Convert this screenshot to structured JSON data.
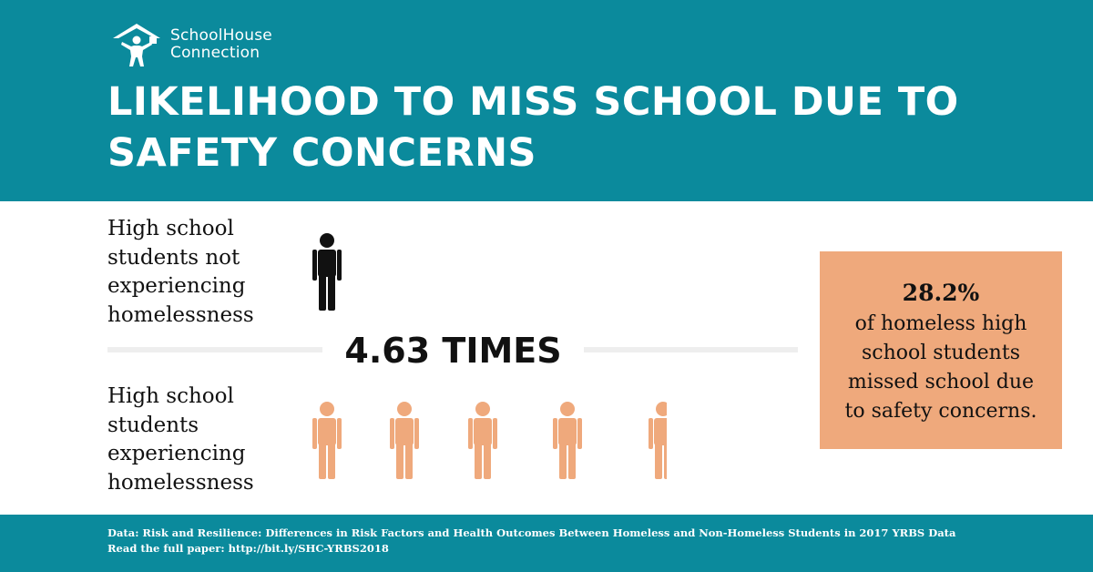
{
  "brand": {
    "line1": "SchoolHouse",
    "line2": "Connection"
  },
  "title": "LIKELIHOOD TO MISS SCHOOL DUE TO SAFETY CONCERNS",
  "comparison": {
    "top_label_lines": [
      "High school",
      "students not",
      "experiencing",
      "homelessness"
    ],
    "bottom_label_lines": [
      "High school",
      "students",
      "experiencing",
      "homelessness"
    ],
    "multiplier_text": "4.63 TIMES",
    "multiplier_value": 4.63,
    "top_icon_count": 1,
    "bottom_icon_count": 4.63
  },
  "stat": {
    "value": "28.2%",
    "lines": [
      "of homeless high",
      "school students",
      "missed school due",
      "to safety concerns."
    ]
  },
  "footer": {
    "source": "Data: Risk and Resilience: Differences in Risk Factors and Health Outcomes Between Homeless and Non-Homeless Students in 2017 YRBS Data",
    "link": "Read the full paper: http://bit.ly/SHC-YRBS2018"
  },
  "colors": {
    "teal": "#0b8a9c",
    "orange": "#efa97c",
    "person_orange": "#efa97c",
    "person_black": "#111111",
    "divider": "#eeeeee"
  }
}
